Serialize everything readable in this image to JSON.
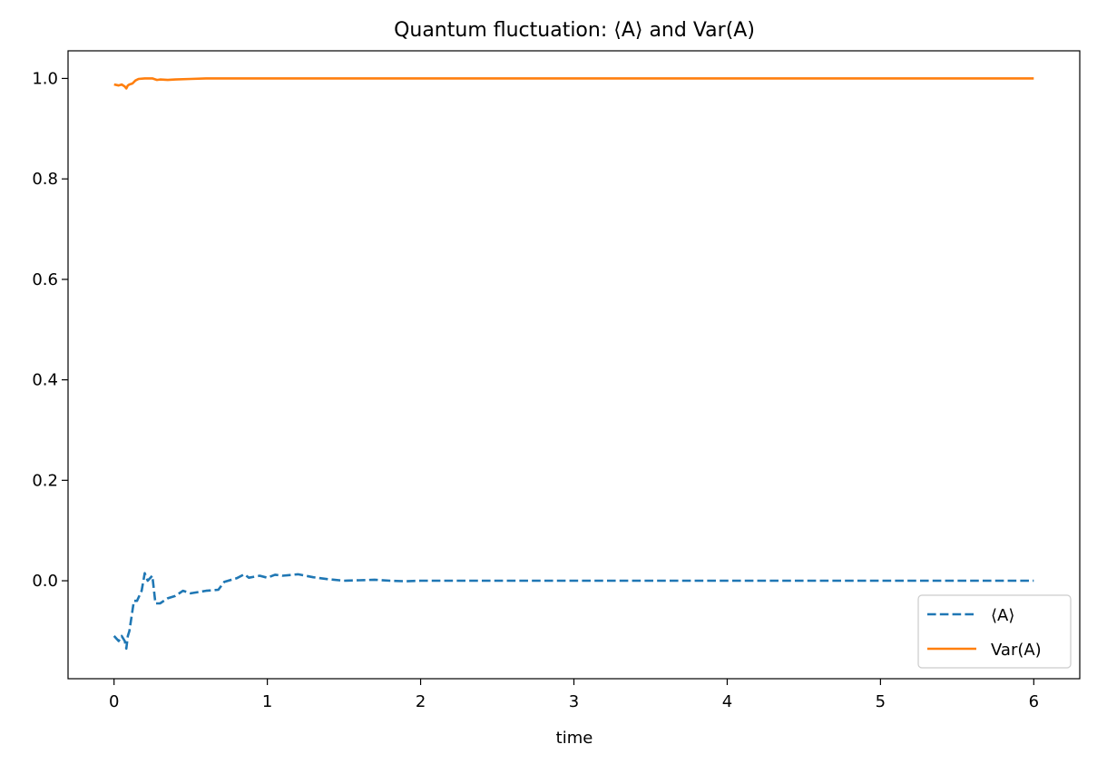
{
  "chart_data": {
    "type": "line",
    "title": "Quantum fluctuation: ⟨A⟩ and Var(A)",
    "xlabel": "time",
    "ylabel": "",
    "xlim": [
      -0.3,
      6.3
    ],
    "ylim": [
      -0.195,
      1.055
    ],
    "xticks": [
      0,
      1,
      2,
      3,
      4,
      5,
      6
    ],
    "xtick_labels": [
      "0",
      "1",
      "2",
      "3",
      "4",
      "5",
      "6"
    ],
    "yticks": [
      0.0,
      0.2,
      0.4,
      0.6,
      0.8,
      1.0
    ],
    "ytick_labels": [
      "0.0",
      "0.2",
      "0.4",
      "0.6",
      "0.8",
      "1.0"
    ],
    "grid": false,
    "legend_position": "lower-right",
    "series": [
      {
        "name": "⟨A⟩",
        "color": "#1f77b4",
        "style": "dashed",
        "x": [
          0,
          0.03,
          0.05,
          0.07,
          0.08,
          0.09,
          0.1,
          0.13,
          0.15,
          0.18,
          0.2,
          0.22,
          0.25,
          0.27,
          0.3,
          0.35,
          0.4,
          0.45,
          0.5,
          0.6,
          0.68,
          0.72,
          0.8,
          0.85,
          0.88,
          0.95,
          1.0,
          1.05,
          1.1,
          1.2,
          1.3,
          1.4,
          1.5,
          1.6,
          1.7,
          1.8,
          1.9,
          2.0,
          2.5,
          3.0,
          3.5,
          4.0,
          4.5,
          5.0,
          5.5,
          6.0
        ],
        "values": [
          -0.11,
          -0.12,
          -0.11,
          -0.12,
          -0.135,
          -0.11,
          -0.1,
          -0.04,
          -0.04,
          -0.02,
          0.015,
          0.0,
          0.01,
          -0.045,
          -0.045,
          -0.035,
          -0.03,
          -0.02,
          -0.025,
          -0.02,
          -0.018,
          -0.002,
          0.005,
          0.013,
          0.006,
          0.01,
          0.006,
          0.012,
          0.01,
          0.013,
          0.007,
          0.003,
          0.0,
          0.001,
          0.002,
          0.0,
          -0.001,
          0.0,
          0.0,
          0.0,
          0.0,
          0.0,
          0.0,
          0.0,
          0.0,
          0.0
        ]
      },
      {
        "name": "Var(A)",
        "color": "#ff7f0e",
        "style": "solid",
        "x": [
          0,
          0.03,
          0.05,
          0.07,
          0.08,
          0.09,
          0.1,
          0.12,
          0.14,
          0.16,
          0.2,
          0.25,
          0.28,
          0.3,
          0.35,
          0.4,
          0.5,
          0.6,
          0.7,
          0.8,
          1.0,
          1.5,
          2.0,
          3.0,
          4.0,
          5.0,
          6.0
        ],
        "values": [
          0.988,
          0.986,
          0.988,
          0.984,
          0.98,
          0.986,
          0.988,
          0.99,
          0.996,
          0.999,
          1.0,
          1.0,
          0.997,
          0.998,
          0.997,
          0.998,
          0.999,
          1.0,
          1.0,
          1.0,
          1.0,
          1.0,
          1.0,
          1.0,
          1.0,
          1.0,
          1.0
        ]
      }
    ]
  }
}
